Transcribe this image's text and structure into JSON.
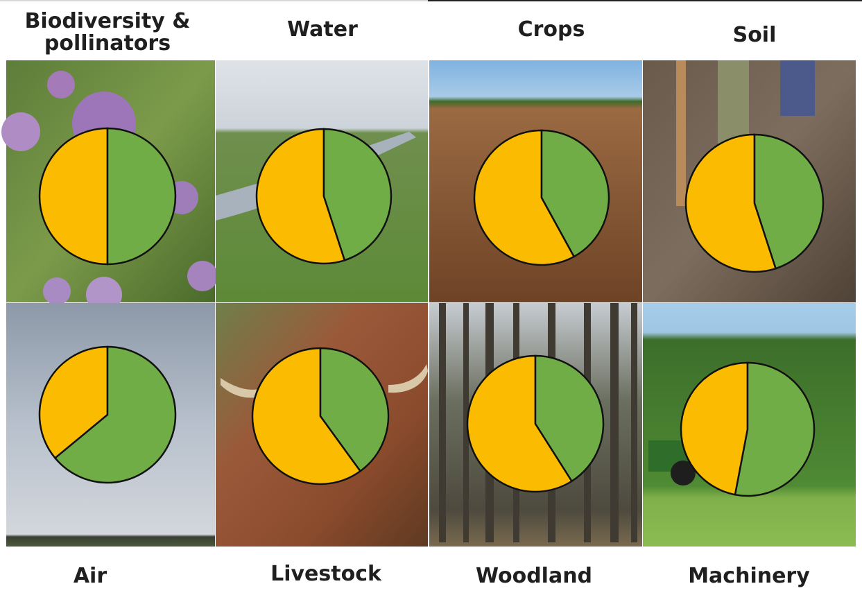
{
  "colors": {
    "yes": "#fbbb00",
    "no": "#70ad47",
    "outline": "#111111"
  },
  "chart_data": [
    {
      "type": "pie",
      "title": "Biodiversity & pollinators",
      "values": [
        50,
        50
      ]
    },
    {
      "type": "pie",
      "title": "Water",
      "values": [
        55,
        45
      ]
    },
    {
      "type": "pie",
      "title": "Crops",
      "values": [
        58,
        42
      ]
    },
    {
      "type": "pie",
      "title": "Soil",
      "values": [
        55,
        45
      ]
    },
    {
      "type": "pie",
      "title": "Air",
      "values": [
        36,
        64
      ]
    },
    {
      "type": "pie",
      "title": "Livestock",
      "values": [
        60,
        40
      ]
    },
    {
      "type": "pie",
      "title": "Woodland",
      "values": [
        59,
        41
      ]
    },
    {
      "type": "pie",
      "title": "Machinery",
      "values": [
        47,
        53
      ]
    }
  ]
}
